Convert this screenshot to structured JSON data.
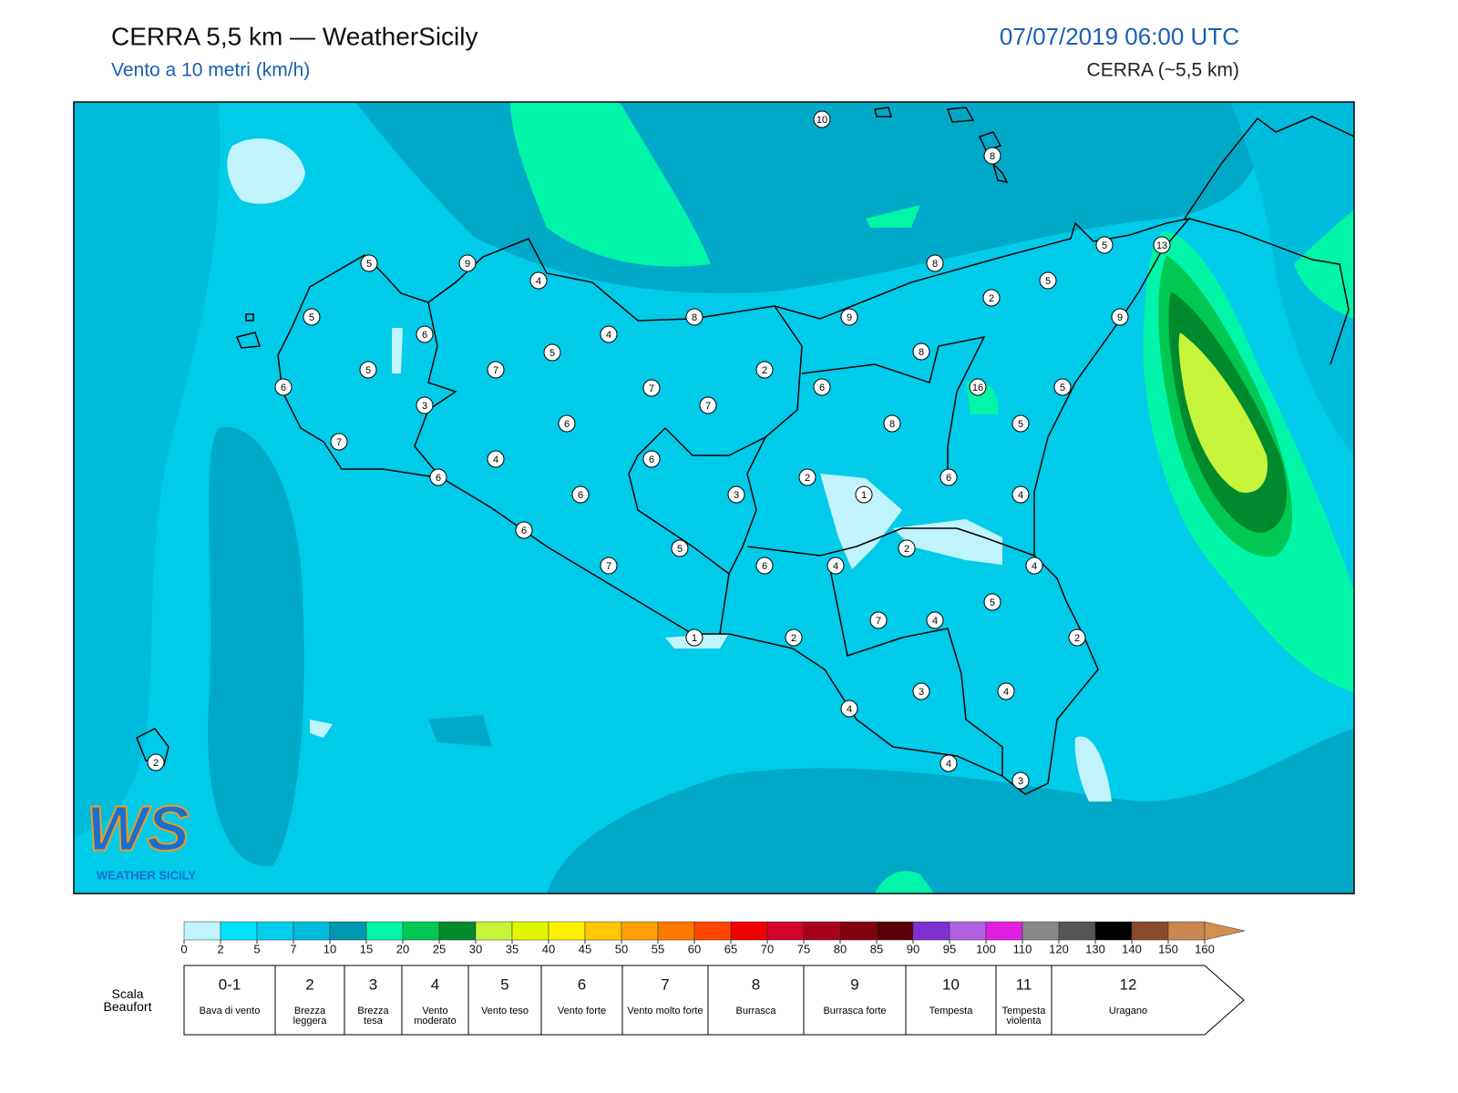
{
  "header": {
    "title": "CERRA 5,5 km — WeatherSicily",
    "subtitle": "Vento a 10 metri (km/h)",
    "datetime": "07/07/2019 06:00 UTC",
    "model": "CERRA (~5,5 km)"
  },
  "stations": [
    10,
    8,
    5,
    13,
    5,
    9,
    4,
    8,
    5,
    5,
    8,
    9,
    2,
    9,
    6,
    4,
    5,
    8,
    5,
    7,
    2,
    6,
    7,
    6,
    16,
    5,
    3,
    7,
    6,
    8,
    5,
    7,
    4,
    6,
    6,
    2,
    6,
    6,
    3,
    1,
    4,
    6,
    5,
    2,
    7,
    6,
    4,
    4,
    5,
    7,
    4,
    1,
    2,
    2,
    3,
    4,
    4,
    4,
    3,
    2
  ],
  "colorbar": {
    "ticks": [
      0,
      2,
      5,
      7,
      10,
      15,
      20,
      25,
      30,
      35,
      40,
      45,
      50,
      55,
      60,
      65,
      70,
      75,
      80,
      85,
      90,
      95,
      100,
      110,
      120,
      130,
      140,
      150,
      160
    ],
    "colors": [
      "#c0f3fb",
      "#00e3fb",
      "#00d0ee",
      "#00bcdc",
      "#0097b0",
      "#00f5a8",
      "#00c853",
      "#008a2e",
      "#c6f53b",
      "#e0f500",
      "#fff000",
      "#ffc800",
      "#ffa000",
      "#ff7800",
      "#ff4600",
      "#f00000",
      "#d2002d",
      "#aa0020",
      "#820010",
      "#5a0008",
      "#8030d0",
      "#b060e0",
      "#e020e0",
      "#888888",
      "#555555",
      "#000000",
      "#8b4a2b",
      "#c88850"
    ],
    "extend_color": "#d09050"
  },
  "beaufort": {
    "label": "Scala Beaufort",
    "classes": [
      {
        "force": "0-1",
        "name": "Bava di vento"
      },
      {
        "force": 2,
        "name": "Brezza leggera"
      },
      {
        "force": 3,
        "name": "Brezza tesa"
      },
      {
        "force": 4,
        "name": "Vento moderato"
      },
      {
        "force": 5,
        "name": "Vento teso"
      },
      {
        "force": 6,
        "name": "Vento forte"
      },
      {
        "force": 7,
        "name": "Vento molto forte"
      },
      {
        "force": 8,
        "name": "Burrasca"
      },
      {
        "force": 9,
        "name": "Burrasca forte"
      },
      {
        "force": 10,
        "name": "Tempesta"
      },
      {
        "force": 11,
        "name": "Tempesta violenta"
      },
      {
        "force": 12,
        "name": "Uragano"
      }
    ]
  },
  "logo": {
    "mark": "WS",
    "text": "WEATHER SICILY"
  }
}
